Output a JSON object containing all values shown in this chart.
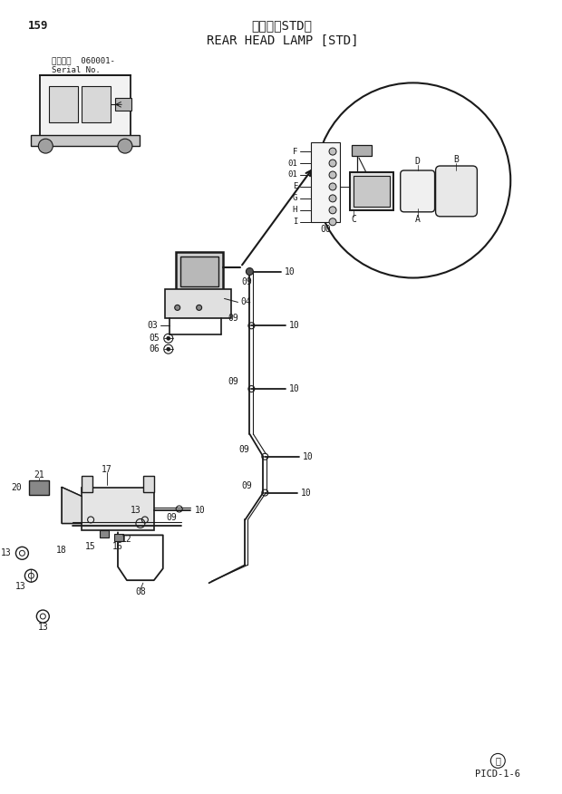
{
  "title_jp": "後照灯［STD］",
  "title_en": "REAR HEAD LAMP [STD]",
  "page_num": "159",
  "serial_text": "適用号機  060001-",
  "serial_line2": "Serial No.",
  "footer_code": "PICD-1-6",
  "bg_color": "#ffffff",
  "line_color": "#1a1a1a"
}
